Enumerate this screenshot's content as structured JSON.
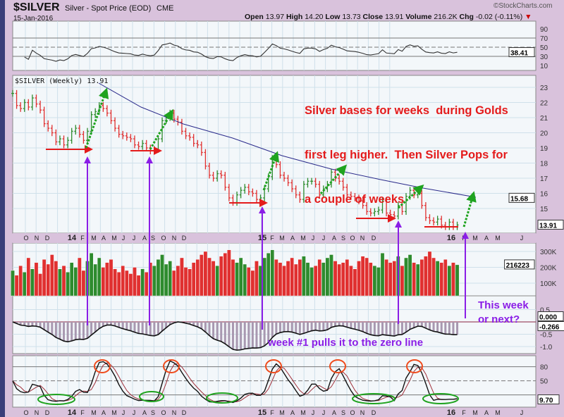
{
  "header": {
    "symbol": "$SILVER",
    "name": "Silver - Spot Price (EOD)",
    "exchange": "CME",
    "date": "15-Jan-2016",
    "copyright": "©StockCharts.com",
    "open_label": "Open",
    "open": "13.97",
    "high_label": "High",
    "high": "14.20",
    "low_label": "Low",
    "low": "13.73",
    "close_label": "Close",
    "close": "13.91",
    "volume_label": "Volume",
    "volume": "216.2K",
    "chg_label": "Chg",
    "chg": "-0.02 (-0.11%)",
    "chg_direction": "down"
  },
  "colors": {
    "up": "#2e8b2e",
    "down": "#e03030",
    "ma": "#2a2a8a",
    "annotation_red": "#e41b1b",
    "annotation_purple": "#8a1ee6",
    "annotation_green": "#1fa31f",
    "background": "#d9c2dc",
    "panel": "#f3f7fa"
  },
  "chart_data": {
    "type": "ohlc",
    "series_label": "$SILVER (Weekly) 13.91",
    "x_tick_labels": [
      "O",
      "N",
      "D",
      "14",
      "F",
      "M",
      "A",
      "M",
      "J",
      "J",
      "A",
      "S",
      "O",
      "N",
      "D",
      "15",
      "F",
      "M",
      "A",
      "M",
      "J",
      "J",
      "A",
      "S",
      "O",
      "N",
      "D",
      "16",
      "F",
      "M",
      "A",
      "M",
      "J"
    ],
    "closes": [
      22.6,
      21.8,
      21.6,
      22.0,
      21.7,
      22.3,
      21.9,
      21.5,
      20.6,
      20.3,
      20.0,
      19.4,
      19.6,
      19.2,
      19.5,
      20.1,
      20.3,
      19.9,
      19.5,
      20.1,
      21.2,
      21.4,
      21.8,
      21.6,
      21.3,
      20.8,
      20.3,
      19.9,
      19.8,
      19.7,
      19.6,
      19.2,
      19.1,
      19.3,
      19.0,
      18.8,
      18.9,
      19.6,
      20.8,
      21.0,
      21.3,
      20.9,
      20.7,
      20.1,
      19.8,
      19.7,
      19.3,
      19.2,
      18.7,
      17.8,
      17.2,
      17.0,
      17.3,
      17.2,
      16.4,
      15.7,
      15.4,
      15.9,
      16.2,
      16.4,
      16.1,
      16.0,
      15.6,
      15.7,
      16.3,
      17.1,
      18.3,
      17.9,
      17.2,
      17.0,
      16.7,
      16.3,
      15.9,
      15.6,
      16.6,
      16.8,
      16.8,
      16.6,
      15.9,
      16.3,
      16.6,
      17.4,
      17.0,
      16.8,
      16.4,
      15.9,
      15.8,
      15.7,
      15.5,
      15.2,
      14.8,
      14.7,
      14.8,
      14.9,
      15.5,
      14.7,
      14.6,
      14.5,
      15.2,
      14.8,
      15.8,
      16.2,
      15.9,
      16.0,
      15.2,
      14.4,
      14.2,
      14.1,
      14.3,
      13.9,
      13.8,
      14.1,
      13.8,
      13.91
    ],
    "volume_k": [
      180,
      150,
      210,
      170,
      260,
      190,
      230,
      160,
      250,
      220,
      280,
      240,
      190,
      210,
      170,
      230,
      200,
      260,
      180,
      240,
      290,
      220,
      260,
      200,
      230,
      250,
      190,
      170,
      210,
      180,
      160,
      200,
      150,
      190,
      170,
      230,
      210,
      250,
      280,
      220,
      240,
      180,
      210,
      260,
      200,
      190,
      230,
      250,
      280,
      300,
      260,
      240,
      210,
      270,
      290,
      310,
      250,
      230,
      260,
      220,
      200,
      180,
      240,
      210,
      260,
      290,
      310,
      250,
      230,
      210,
      240,
      260,
      220,
      250,
      270,
      230,
      200,
      210,
      250,
      230,
      260,
      280,
      240,
      220,
      230,
      250,
      210,
      190,
      240,
      270,
      260,
      230,
      210,
      200,
      290,
      250,
      230,
      240,
      270,
      210,
      260,
      280,
      230,
      220,
      250,
      270,
      300,
      260,
      240,
      230,
      250,
      210,
      230,
      216
    ],
    "ma_label": "15.68",
    "y_ticks_price": [
      23,
      22,
      21,
      20,
      19,
      18,
      17,
      16,
      15
    ],
    "ylim_price": [
      13.5,
      23.8
    ],
    "rsi": {
      "ticks": [
        90,
        70,
        50,
        30,
        10
      ],
      "last": "38.41"
    },
    "volume": {
      "ticks": [
        "300K",
        "200K",
        "100K"
      ],
      "last": "216223"
    },
    "macd": {
      "ticks": [
        "0.5",
        "-0.5",
        "-1.0"
      ],
      "signal_last": "0.000",
      "last": "-0.266"
    },
    "stoch": {
      "ticks": [
        80,
        50
      ],
      "last": "9.70"
    }
  },
  "annotations": {
    "main_text": [
      "Silver bases for weeks  during Golds",
      "first leg higher.  Then Silver Pops for",
      "a couple of weeks"
    ],
    "this_week": [
      "This week",
      "or next?"
    ],
    "zero_line_text": "week #1 pulls it to the zero line"
  }
}
